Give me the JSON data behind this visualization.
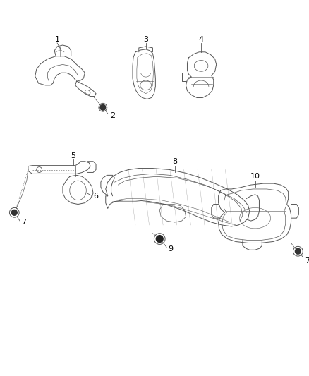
{
  "background_color": "#ffffff",
  "line_color": "#555555",
  "label_color": "#000000",
  "fig_width": 4.38,
  "fig_height": 5.33,
  "dpi": 100,
  "lw": 0.7
}
